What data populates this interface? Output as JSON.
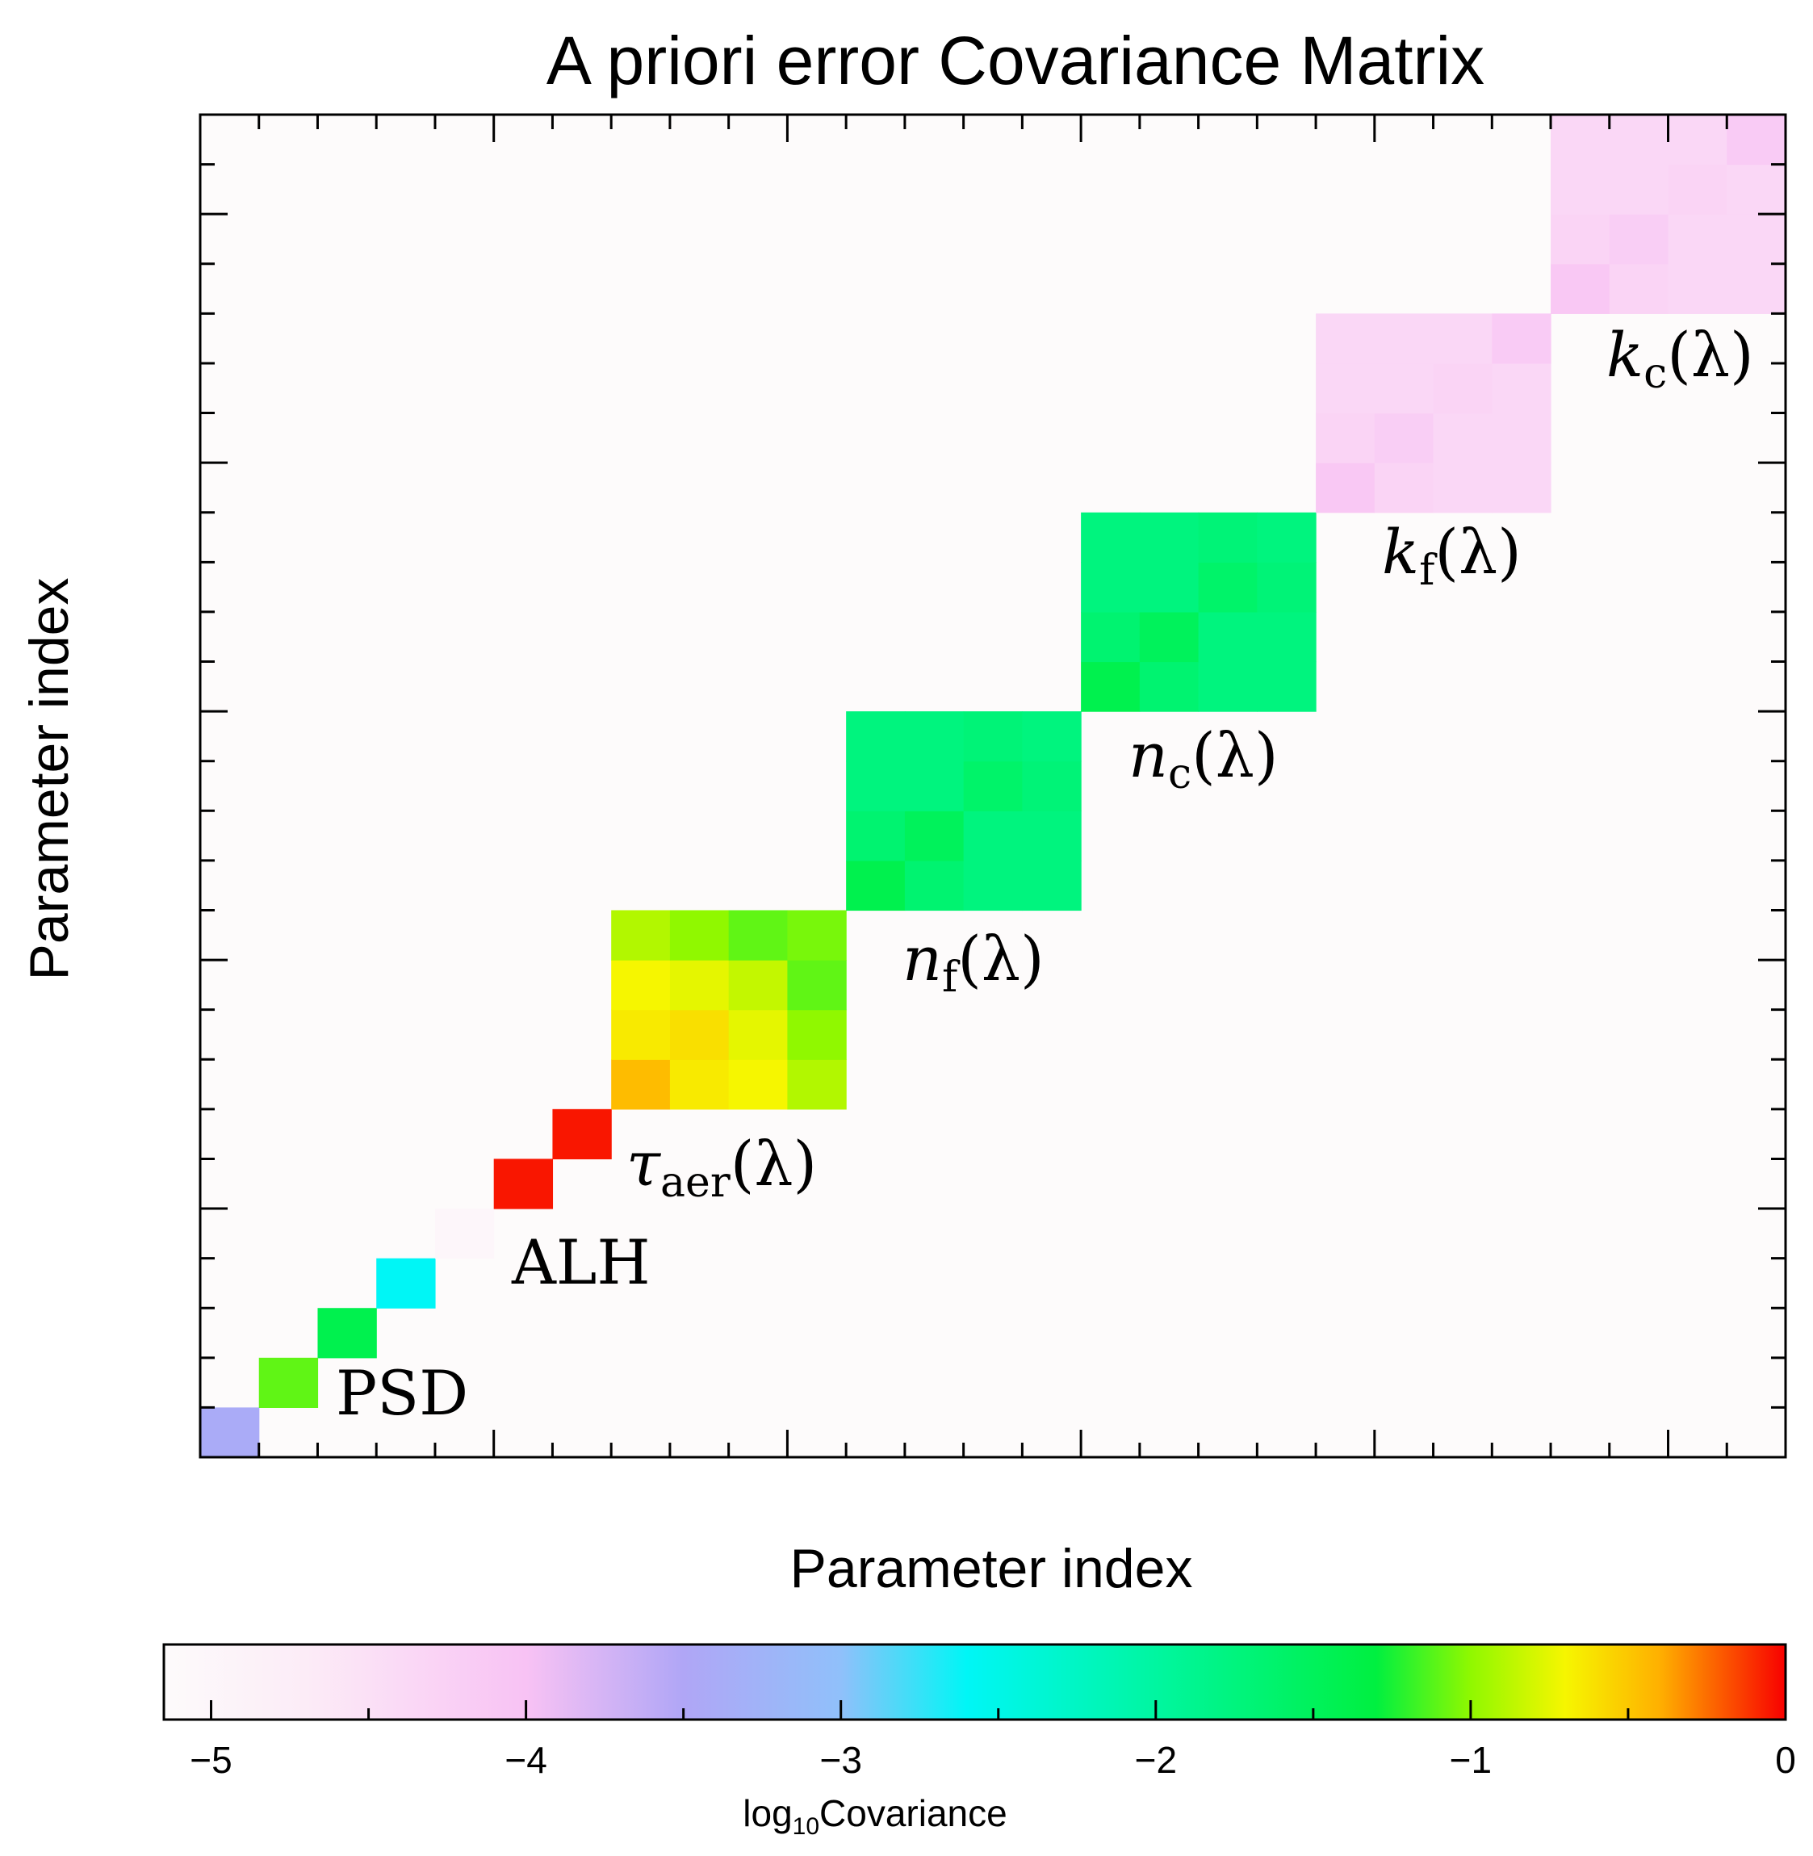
{
  "chart_data": {
    "type": "heatmap",
    "title": "A priori error Covariance Matrix",
    "xlabel": "Parameter index",
    "ylabel": "Parameter index",
    "n_params": 27,
    "colorbar": {
      "label_base": "log",
      "label_subscript": "10",
      "label_rest": "Covariance",
      "range": [
        -5.15,
        0
      ],
      "ticks": [
        -5,
        -4,
        -3,
        -2,
        -1,
        0
      ],
      "tick_labels": [
        "−5",
        "−4",
        "−3",
        "−2",
        "−1",
        "0"
      ],
      "stops": [
        {
          "v": -5.15,
          "color": "#fdfbfb"
        },
        {
          "v": -4.7,
          "color": "#fcecf7"
        },
        {
          "v": -4.0,
          "color": "#f8c2f4"
        },
        {
          "v": -3.5,
          "color": "#b0a6f6"
        },
        {
          "v": -3.0,
          "color": "#90c0fa"
        },
        {
          "v": -2.6,
          "color": "#00f6f6"
        },
        {
          "v": -2.0,
          "color": "#00f6a0"
        },
        {
          "v": -1.3,
          "color": "#00f040"
        },
        {
          "v": -1.0,
          "color": "#90f800"
        },
        {
          "v": -0.7,
          "color": "#f6f600"
        },
        {
          "v": -0.4,
          "color": "#ffb000"
        },
        {
          "v": 0.0,
          "color": "#f80000"
        }
      ]
    },
    "background_value": -5.15,
    "diagonal_singles": [
      {
        "index": 0,
        "value": -3.4
      },
      {
        "index": 1,
        "value": -1.1
      },
      {
        "index": 2,
        "value": -1.4
      },
      {
        "index": 3,
        "value": -2.6
      },
      {
        "index": 4,
        "value": -5.0
      },
      {
        "index": 5,
        "value": -0.05
      },
      {
        "index": 6,
        "value": -0.05
      }
    ],
    "blocks": [
      {
        "name": "tau_aer",
        "start": 7,
        "size": 4,
        "values": [
          [
            -0.45,
            -0.65,
            -0.7,
            -0.9
          ],
          [
            -0.65,
            -0.6,
            -0.75,
            -1.0
          ],
          [
            -0.7,
            -0.75,
            -0.85,
            -1.1
          ],
          [
            -0.9,
            -1.0,
            -1.1,
            -1.05
          ]
        ]
      },
      {
        "name": "n_f",
        "start": 11,
        "size": 4,
        "values": [
          [
            -1.4,
            -1.65,
            -1.75,
            -1.75
          ],
          [
            -1.65,
            -1.5,
            -1.75,
            -1.75
          ],
          [
            -1.75,
            -1.75,
            -1.6,
            -1.7
          ],
          [
            -1.75,
            -1.75,
            -1.7,
            -1.75
          ]
        ]
      },
      {
        "name": "n_c",
        "start": 15,
        "size": 4,
        "values": [
          [
            -1.4,
            -1.65,
            -1.75,
            -1.75
          ],
          [
            -1.65,
            -1.5,
            -1.75,
            -1.75
          ],
          [
            -1.75,
            -1.75,
            -1.6,
            -1.7
          ],
          [
            -1.75,
            -1.75,
            -1.7,
            -1.75
          ]
        ]
      },
      {
        "name": "k_f",
        "start": 19,
        "size": 4,
        "values": [
          [
            -4.1,
            -4.3,
            -4.35,
            -4.35
          ],
          [
            -4.3,
            -4.2,
            -4.35,
            -4.35
          ],
          [
            -4.35,
            -4.35,
            -4.3,
            -4.35
          ],
          [
            -4.35,
            -4.35,
            -4.35,
            -4.15
          ]
        ]
      },
      {
        "name": "k_c",
        "start": 23,
        "size": 4,
        "values": [
          [
            -4.1,
            -4.3,
            -4.35,
            -4.35
          ],
          [
            -4.3,
            -4.2,
            -4.35,
            -4.35
          ],
          [
            -4.35,
            -4.35,
            -4.3,
            -4.35
          ],
          [
            -4.35,
            -4.35,
            -4.35,
            -4.15
          ]
        ]
      }
    ],
    "annotations": {
      "psd": "PSD",
      "alh": "ALH",
      "tau_sym": "τ",
      "tau_sub": "aer",
      "tau_rest": "(λ)",
      "nf_sym": "n",
      "nf_sub": "f",
      "nf_rest": "(λ)",
      "nc_sym": "n",
      "nc_sub": "c",
      "nc_rest": "(λ)",
      "kf_sym": "k",
      "kf_sub": "f",
      "kf_rest": "(λ)",
      "kc_sym": "k",
      "kc_sub": "c",
      "kc_rest": "(λ)"
    }
  }
}
